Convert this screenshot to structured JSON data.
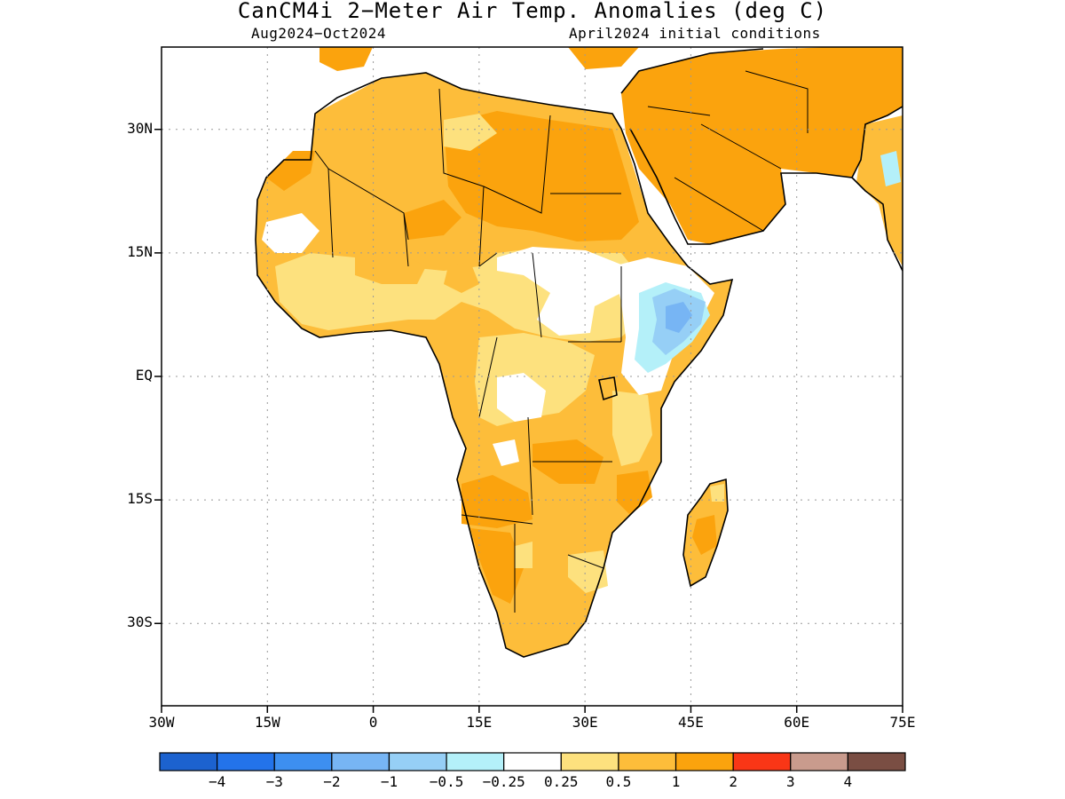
{
  "header": {
    "title": "CanCM4i 2−Meter Air Temp. Anomalies (deg C)",
    "period": "Aug2024−Oct2024",
    "init": "April2024 initial conditions"
  },
  "axes": {
    "y_ticks": [
      {
        "label": "30N",
        "lat": 30
      },
      {
        "label": "15N",
        "lat": 15
      },
      {
        "label": "EQ",
        "lat": 0
      },
      {
        "label": "15S",
        "lat": -15
      },
      {
        "label": "30S",
        "lat": -30
      }
    ],
    "x_ticks": [
      {
        "label": "30W",
        "lon": -30
      },
      {
        "label": "15W",
        "lon": -15
      },
      {
        "label": "0",
        "lon": 0
      },
      {
        "label": "15E",
        "lon": 15
      },
      {
        "label": "30E",
        "lon": 30
      },
      {
        "label": "45E",
        "lon": 45
      },
      {
        "label": "60E",
        "lon": 60
      },
      {
        "label": "75E",
        "lon": 75
      }
    ],
    "lon_range": [
      -30,
      75
    ],
    "lat_range": [
      -40,
      40
    ],
    "grid": "dotted"
  },
  "colorbar": {
    "colors": [
      "#1c62cf",
      "#2373ea",
      "#3d8ff0",
      "#77b5f4",
      "#96cff6",
      "#b4f0f9",
      "#ffffff",
      "#fde17e",
      "#fdbd3a",
      "#fba30d",
      "#f93616",
      "#c99b8d",
      "#7a4e43"
    ],
    "labels": [
      "−4",
      "−3",
      "−2",
      "−1",
      "−0.5",
      "−0.25",
      "0.25",
      "0.5",
      "1",
      "2",
      "3",
      "4"
    ]
  },
  "map_colors": {
    "anom_0_5": "#fde17e",
    "anom_1": "#fdbd3a",
    "anom_2": "#fba30d",
    "anom_neg_0_5": "#96cff6",
    "anom_neg_1": "#77b5f4",
    "anom_neg_0_25": "#b4f0f9",
    "ocean": "#ffffff"
  }
}
